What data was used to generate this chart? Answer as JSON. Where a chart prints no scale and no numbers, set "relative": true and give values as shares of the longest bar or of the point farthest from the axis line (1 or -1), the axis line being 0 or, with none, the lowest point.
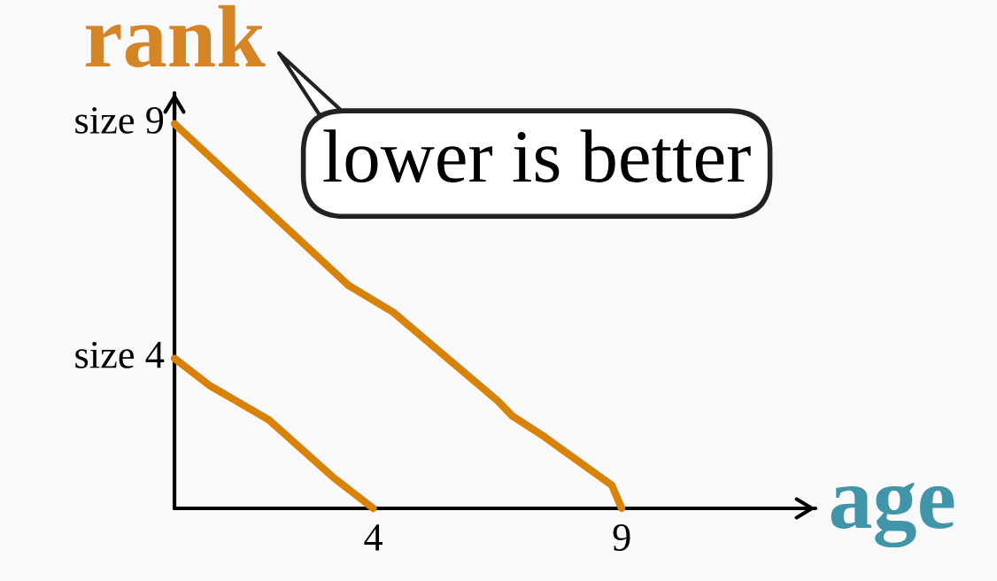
{
  "chart_data": {
    "type": "line",
    "relative": true,
    "xlabel": "age",
    "ylabel": "rank",
    "annotations": [
      "lower is better",
      {
        "text": "size 9",
        "x": 0,
        "y": 1
      },
      {
        "text": "size 4",
        "x": 0,
        "y": 0.39
      }
    ],
    "xlim": [
      0,
      12.9
    ],
    "xticks": [
      4,
      9
    ],
    "series": [
      {
        "color": "#d9820a",
        "x": [
          0,
          3.5,
          4.4,
          6.5,
          6.8,
          7.4,
          8.8,
          9
        ],
        "values": [
          1,
          0.58,
          0.51,
          0.28,
          0.24,
          0.19,
          0.06,
          0
        ]
      },
      {
        "color": "#d9820a",
        "x": [
          0,
          0.7,
          1.9,
          3.2,
          4
        ],
        "values": [
          0.39,
          0.32,
          0.23,
          0.08,
          0
        ]
      }
    ]
  }
}
